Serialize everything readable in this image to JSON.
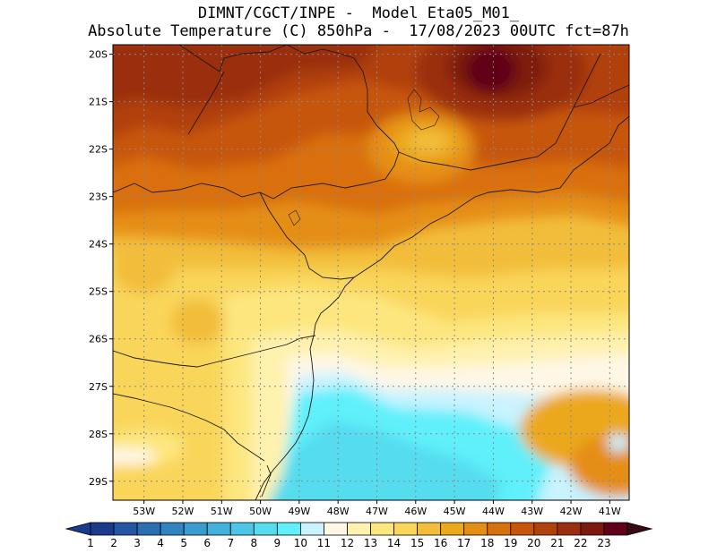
{
  "header": {
    "line1": "DIMNT/CGCT/INPE -  Model Eta05_M01_",
    "line2": "Absolute Temperature (C) 850hPa -  17/08/2023 00UTC fct=87h"
  },
  "map": {
    "lon_range": [
      -53.8,
      -40.5
    ],
    "lat_range": [
      -29.4,
      -19.8
    ],
    "lat_ticks": [
      "20S",
      "21S",
      "22S",
      "23S",
      "24S",
      "25S",
      "26S",
      "27S",
      "28S",
      "29S"
    ],
    "lat_values": [
      -20,
      -21,
      -22,
      -23,
      -24,
      -25,
      -26,
      -27,
      -28,
      -29
    ],
    "lon_ticks": [
      "53W",
      "52W",
      "51W",
      "50W",
      "49W",
      "48W",
      "47W",
      "46W",
      "45W",
      "44W",
      "43W",
      "42W",
      "41W"
    ],
    "lon_values": [
      -53,
      -52,
      -51,
      -50,
      -49,
      -48,
      -47,
      -46,
      -45,
      -44,
      -43,
      -42,
      -41
    ],
    "temperature_field": [
      {
        "range": "19-21",
        "region": "north-west"
      },
      {
        "range": "22-23",
        "region": "north around 44W 20S"
      },
      {
        "range": "15-16",
        "region": "around 46W 22S"
      },
      {
        "range": "17-18",
        "region": "central belt 23S-24S"
      },
      {
        "range": "12-14",
        "region": "south-west and coastal shelf"
      },
      {
        "range": "9-10",
        "region": "ocean south-east of 27S"
      }
    ]
  },
  "colorbar": {
    "labels": [
      "1",
      "2",
      "3",
      "4",
      "5",
      "6",
      "7",
      "8",
      "9",
      "10",
      "11",
      "12",
      "13",
      "14",
      "15",
      "16",
      "17",
      "18",
      "19",
      "20",
      "21",
      "22",
      "23"
    ],
    "colors": [
      "#1b3a8c",
      "#2456a3",
      "#2b6fb3",
      "#3184bf",
      "#3b9bcf",
      "#44b0dc",
      "#4bc6e6",
      "#55dcef",
      "#5ff0fb",
      "#c8f3ff",
      "#fff7e6",
      "#fff1ae",
      "#fde67e",
      "#f9d55a",
      "#f2bd3b",
      "#eca81f",
      "#e58e16",
      "#d9700f",
      "#c7560c",
      "#b1410c",
      "#9a2f0f",
      "#7e1a0d",
      "#610019"
    ],
    "arrow_left_color": "#1b3a8c",
    "arrow_right_color": "#3a0a14"
  }
}
